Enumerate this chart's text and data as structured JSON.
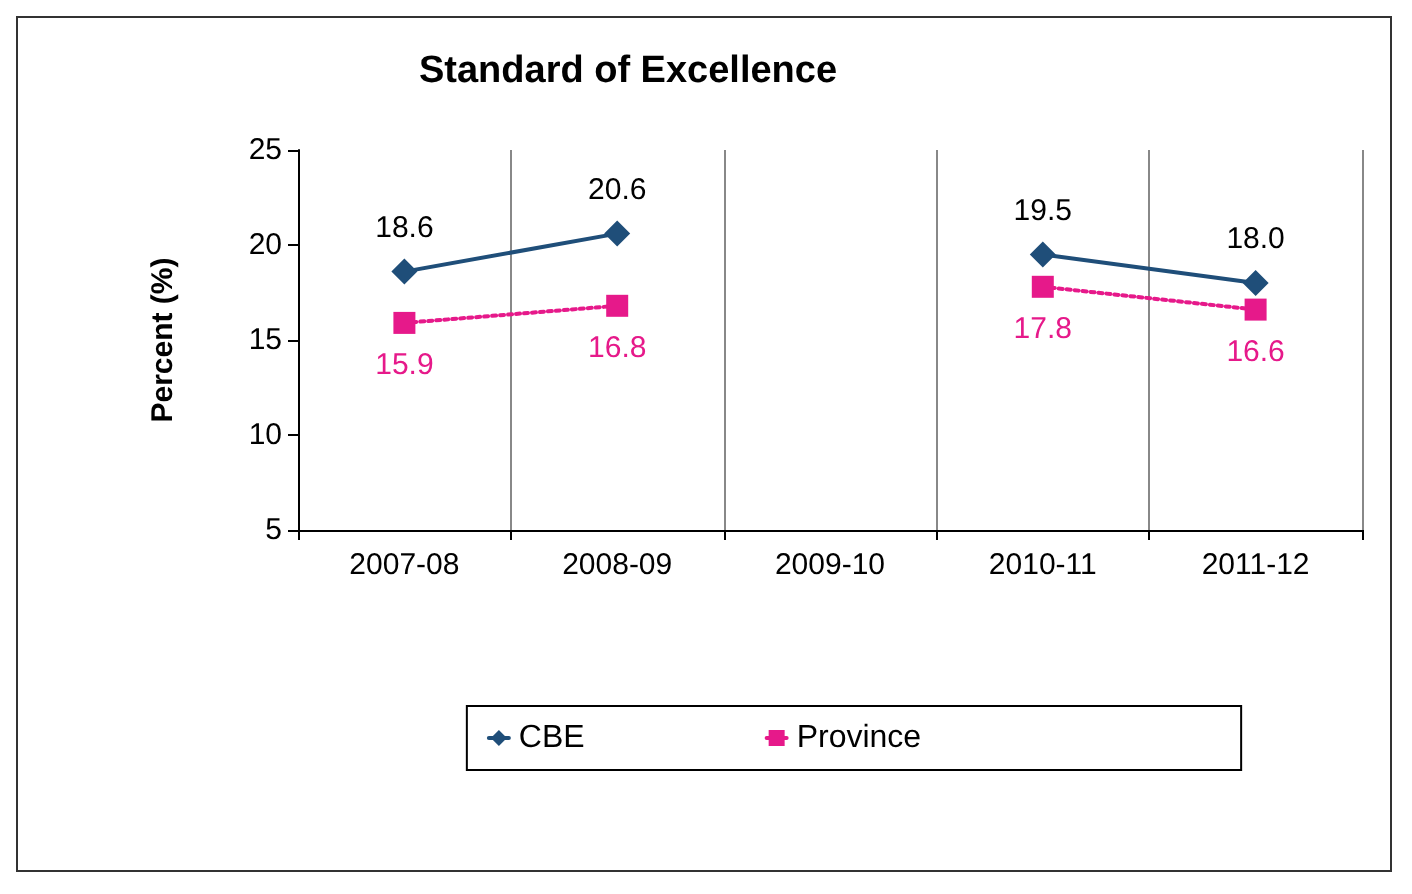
{
  "chart_data": {
    "type": "line",
    "title": "Standard of Excellence",
    "ylabel": "Percent (%)",
    "categories": [
      "2007-08",
      "2008-09",
      "2009-10",
      "2010-11",
      "2011-12"
    ],
    "series": [
      {
        "name": "CBE",
        "color": "#1f4e79",
        "values": [
          18.6,
          20.6,
          null,
          19.5,
          18.0
        ],
        "value_labels": [
          "18.6",
          "20.6",
          null,
          "19.5",
          "18.0"
        ],
        "marker": "diamond",
        "line_style": "solid"
      },
      {
        "name": "Province",
        "color": "#e6198a",
        "values": [
          15.9,
          16.8,
          null,
          17.8,
          16.6
        ],
        "value_labels": [
          "15.9",
          "16.8",
          null,
          "17.8",
          "16.6"
        ],
        "marker": "square",
        "line_style": "dotted"
      }
    ],
    "ylim": [
      5,
      25
    ],
    "yticks": [
      5,
      10,
      15,
      20,
      25
    ],
    "grid": "x",
    "legend": "bottom"
  }
}
